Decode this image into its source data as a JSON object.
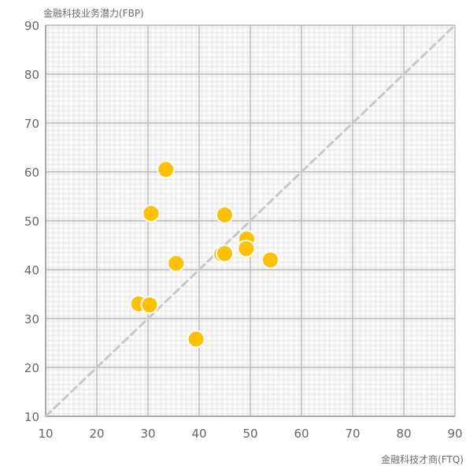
{
  "chart_data": {
    "type": "scatter",
    "xlabel": "金融科技才商(FTQ)",
    "ylabel": "金融科技业务潜力(FBP)",
    "xlim": [
      10,
      90
    ],
    "ylim": [
      10,
      90
    ],
    "x_ticks": [
      10,
      20,
      30,
      40,
      50,
      60,
      70,
      80,
      90
    ],
    "y_ticks": [
      10,
      20,
      30,
      40,
      50,
      60,
      70,
      80,
      90
    ],
    "grid": true,
    "legend": "none",
    "reference_line": {
      "style": "dashed",
      "from": [
        10,
        10
      ],
      "to": [
        90,
        90
      ],
      "color": "#c8c8c8"
    },
    "series": [
      {
        "color": "#FFC000",
        "points": [
          {
            "x": 33.5,
            "y": 60.5
          },
          {
            "x": 30.6,
            "y": 51.5
          },
          {
            "x": 45.0,
            "y": 51.2
          },
          {
            "x": 49.3,
            "y": 46.3
          },
          {
            "x": 49.2,
            "y": 44.3
          },
          {
            "x": 44.4,
            "y": 43.2
          },
          {
            "x": 45.0,
            "y": 43.3
          },
          {
            "x": 53.9,
            "y": 42.0
          },
          {
            "x": 35.5,
            "y": 41.3
          },
          {
            "x": 28.2,
            "y": 33.0
          },
          {
            "x": 30.3,
            "y": 32.8
          },
          {
            "x": 39.4,
            "y": 25.8
          }
        ]
      }
    ]
  }
}
